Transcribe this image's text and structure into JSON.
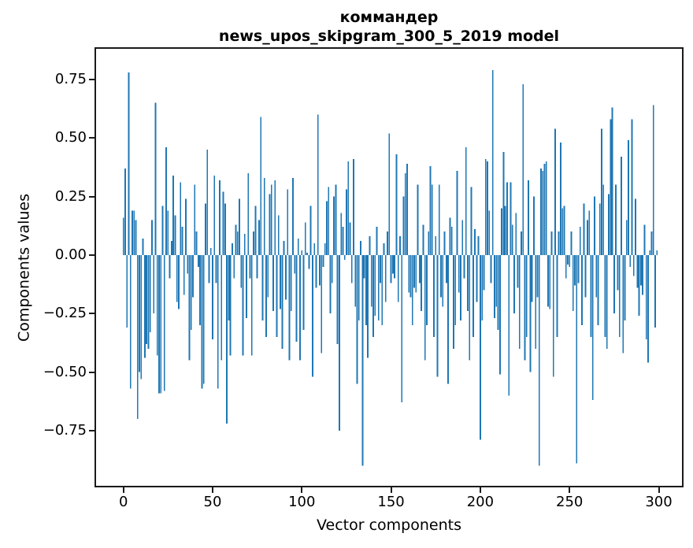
{
  "title": {
    "line1": "коммандер",
    "line2": "news_upos_skipgram_300_5_2019 model"
  },
  "chart_data": {
    "type": "bar",
    "title": "коммандер — news_upos_skipgram_300_5_2019 model",
    "xlabel": "Vector components",
    "ylabel": "Components values",
    "legend": "none",
    "grid": false,
    "bar_color": "#1f77b4",
    "spine_color": "#1a1a1a",
    "xlim": [
      -15.3,
      313.0
    ],
    "ylim": [
      -0.986,
      0.881
    ],
    "bar_width_units": 0.8,
    "x_start": 0,
    "yticks": [
      {
        "v": 0.75,
        "label": "0.75"
      },
      {
        "v": 0.5,
        "label": "0.50"
      },
      {
        "v": 0.25,
        "label": "0.25"
      },
      {
        "v": 0.0,
        "label": "0.00"
      },
      {
        "v": -0.25,
        "label": "−0.25"
      },
      {
        "v": -0.5,
        "label": "−0.50"
      },
      {
        "v": -0.75,
        "label": "−0.75"
      }
    ],
    "xticks": [
      {
        "v": 0,
        "label": "0"
      },
      {
        "v": 50,
        "label": "50"
      },
      {
        "v": 100,
        "label": "100"
      },
      {
        "v": 150,
        "label": "150"
      },
      {
        "v": 200,
        "label": "200"
      },
      {
        "v": 250,
        "label": "250"
      },
      {
        "v": 300,
        "label": "300"
      }
    ],
    "values": [
      0.16,
      0.37,
      -0.31,
      0.78,
      -0.57,
      0.19,
      0.19,
      0.15,
      -0.7,
      -0.5,
      -0.53,
      0.07,
      -0.44,
      -0.38,
      -0.4,
      -0.33,
      0.15,
      -0.25,
      0.65,
      -0.43,
      -0.59,
      -0.59,
      0.21,
      -0.58,
      0.46,
      0.19,
      -0.1,
      0.06,
      0.34,
      0.17,
      -0.2,
      -0.23,
      0.31,
      0.12,
      -0.17,
      0.24,
      -0.08,
      -0.45,
      -0.32,
      -0.18,
      0.3,
      0.1,
      -0.05,
      -0.3,
      -0.57,
      -0.55,
      0.22,
      0.45,
      -0.12,
      0.03,
      -0.36,
      0.34,
      -0.12,
      -0.57,
      0.32,
      -0.45,
      0.27,
      0.22,
      -0.72,
      -0.28,
      -0.43,
      0.05,
      -0.1,
      0.13,
      0.1,
      0.24,
      -0.14,
      -0.43,
      0.09,
      -0.27,
      0.35,
      -0.1,
      -0.43,
      0.1,
      0.21,
      -0.1,
      0.15,
      0.59,
      -0.28,
      0.33,
      -0.35,
      -0.18,
      0.26,
      0.3,
      -0.24,
      0.32,
      -0.35,
      0.17,
      -0.23,
      -0.4,
      0.06,
      -0.19,
      0.28,
      -0.45,
      -0.24,
      0.33,
      -0.08,
      -0.37,
      0.07,
      -0.45,
      0.02,
      -0.32,
      0.14,
      0.01,
      -0.06,
      0.21,
      -0.52,
      0.05,
      -0.14,
      0.6,
      -0.13,
      -0.42,
      -0.05,
      0.05,
      0.23,
      0.29,
      -0.25,
      -0.12,
      0.25,
      0.3,
      -0.38,
      -0.75,
      0.18,
      0.12,
      -0.02,
      0.28,
      0.4,
      0.14,
      -0.12,
      0.41,
      -0.22,
      -0.55,
      -0.28,
      0.06,
      -0.9,
      -0.1,
      -0.3,
      -0.44,
      0.08,
      -0.22,
      -0.35,
      -0.26,
      0.12,
      -0.28,
      -0.12,
      -0.3,
      0.05,
      -0.2,
      0.1,
      0.52,
      -0.12,
      -0.08,
      -0.1,
      0.43,
      -0.2,
      0.08,
      -0.63,
      0.25,
      0.35,
      0.39,
      -0.16,
      -0.18,
      -0.3,
      -0.14,
      -0.16,
      0.3,
      -0.12,
      -0.24,
      0.13,
      -0.45,
      -0.3,
      0.1,
      0.38,
      0.3,
      -0.35,
      0.08,
      -0.52,
      0.3,
      -0.18,
      -0.22,
      0.1,
      -0.12,
      -0.55,
      0.16,
      0.12,
      -0.4,
      -0.3,
      0.36,
      -0.16,
      -0.28,
      0.15,
      -0.1,
      0.46,
      -0.24,
      -0.45,
      0.29,
      -0.35,
      0.11,
      -0.2,
      0.08,
      -0.79,
      -0.28,
      -0.15,
      0.41,
      0.4,
      0.19,
      -0.12,
      0.79,
      -0.27,
      -0.22,
      -0.32,
      -0.51,
      0.2,
      0.44,
      0.21,
      0.31,
      -0.6,
      0.31,
      0.13,
      -0.25,
      0.18,
      -0.14,
      -0.4,
      0.1,
      0.73,
      -0.45,
      -0.35,
      0.32,
      -0.5,
      -0.2,
      0.25,
      -0.4,
      -0.18,
      -0.9,
      0.37,
      0.36,
      0.39,
      0.4,
      -0.22,
      -0.23,
      0.1,
      -0.52,
      0.54,
      -0.35,
      0.1,
      0.48,
      0.2,
      0.21,
      -0.1,
      -0.04,
      -0.05,
      0.1,
      -0.24,
      -0.13,
      -0.89,
      -0.12,
      0.12,
      -0.3,
      0.22,
      -0.18,
      0.15,
      0.19,
      -0.35,
      -0.62,
      0.25,
      -0.18,
      -0.3,
      0.22,
      0.54,
      0.3,
      -0.35,
      -0.4,
      0.26,
      0.58,
      0.63,
      -0.25,
      0.3,
      -0.15,
      -0.35,
      0.42,
      -0.42,
      -0.28,
      0.15,
      0.49,
      -0.05,
      0.58,
      -0.09,
      0.24,
      -0.14,
      -0.26,
      -0.13,
      -0.17,
      0.13,
      -0.36,
      -0.46,
      0.02,
      0.1,
      0.64,
      -0.31,
      0.02
    ]
  }
}
